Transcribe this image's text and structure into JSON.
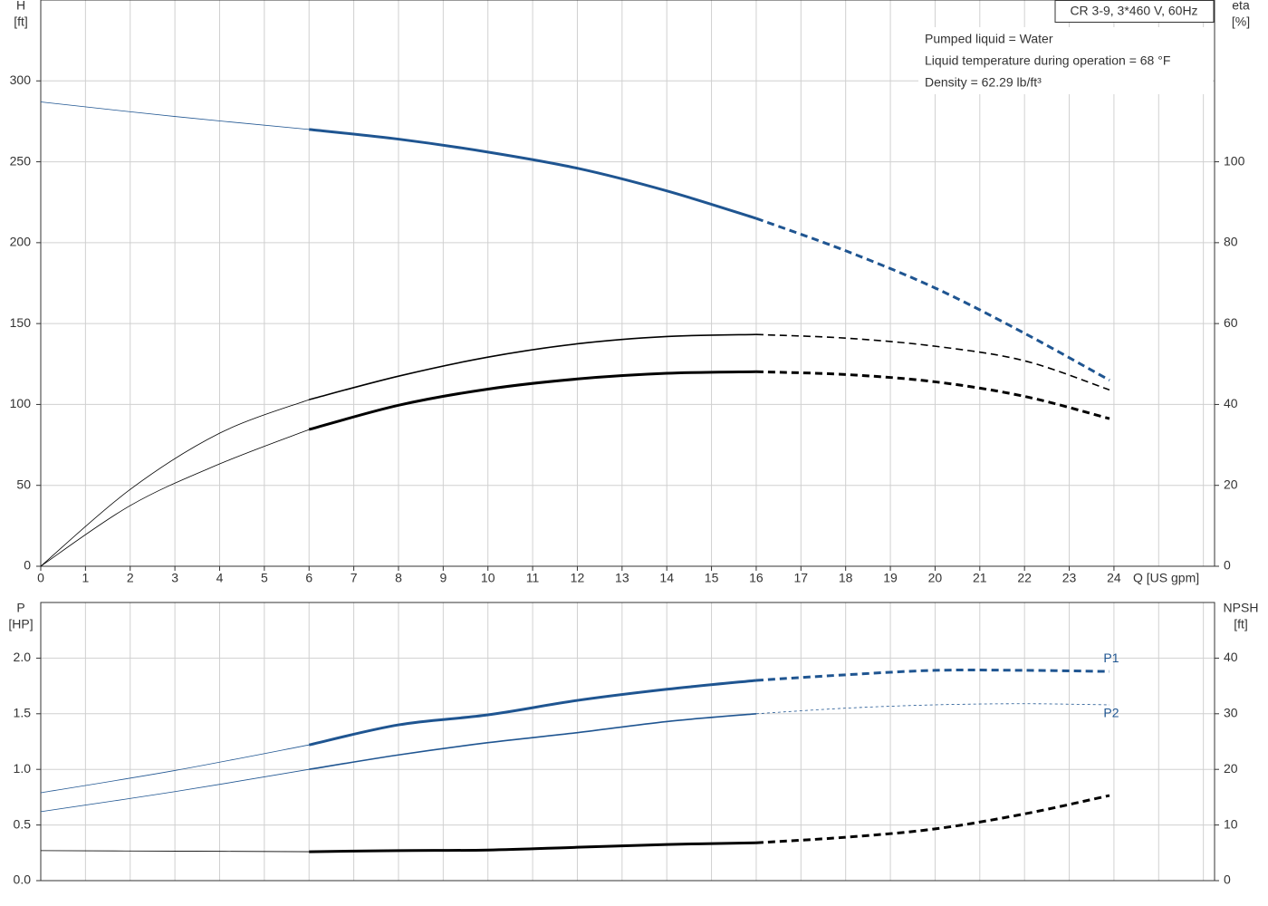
{
  "chart_data": [
    {
      "type": "line",
      "y_label": "H",
      "y_unit": "[ft]",
      "y2_label": "eta",
      "y2_unit": "[%]",
      "x_label": "Q [US gpm]",
      "title": "CR 3-9, 3*460 V, 60Hz",
      "notes": [
        "Pumped liquid = Water",
        "Liquid temperature during operation = 68 °F",
        "Density = 62.29 lb/ft³"
      ],
      "xlim": [
        0,
        26.25
      ],
      "xticks": [
        0,
        1,
        2,
        3,
        4,
        5,
        6,
        7,
        8,
        9,
        10,
        11,
        12,
        13,
        14,
        15,
        16,
        17,
        18,
        19,
        20,
        21,
        22,
        23,
        24
      ],
      "ylim": [
        0,
        350
      ],
      "yticks": [
        0,
        50,
        100,
        150,
        200,
        250,
        300
      ],
      "y2lim": [
        0,
        140
      ],
      "y2ticks": [
        0,
        20,
        40,
        60,
        80,
        100
      ],
      "grid": true,
      "curves": [
        {
          "color": "#1f5591",
          "axis": "y",
          "pieces": [
            {
              "style": "thin",
              "dashed": false,
              "x": [
                0,
                3,
                6
              ],
              "values": [
                287,
                278,
                270
              ]
            },
            {
              "style": "thick",
              "dashed": false,
              "x": [
                6,
                8,
                10,
                12,
                14,
                16
              ],
              "values": [
                270,
                264,
                256,
                246,
                232,
                215
              ]
            },
            {
              "style": "thick",
              "dashed": true,
              "x": [
                16,
                18,
                20,
                22,
                23.9
              ],
              "values": [
                215,
                195,
                172,
                144,
                115
              ]
            }
          ]
        },
        {
          "color": "#000000",
          "axis": "y2",
          "pieces": [
            {
              "style": "thin",
              "dashed": false,
              "x": [
                0,
                2,
                4,
                6
              ],
              "values": [
                0,
                19,
                32.9,
                41.2
              ]
            },
            {
              "style": "medium",
              "dashed": false,
              "x": [
                6,
                8,
                10,
                12,
                14,
                16
              ],
              "values": [
                41.2,
                47,
                51.7,
                55,
                56.8,
                57.3
              ]
            },
            {
              "style": "medium",
              "dashed": true,
              "x": [
                16,
                18,
                20,
                22,
                23.9
              ],
              "values": [
                57.3,
                56.4,
                54.4,
                50.8,
                43.6
              ]
            }
          ]
        },
        {
          "color": "#000000",
          "axis": "y2",
          "pieces": [
            {
              "style": "thin",
              "dashed": false,
              "x": [
                0,
                2,
                4,
                6
              ],
              "values": [
                0,
                15,
                25.3,
                33.8
              ]
            },
            {
              "style": "thick",
              "dashed": false,
              "x": [
                6,
                8,
                10,
                12,
                14,
                16
              ],
              "values": [
                33.8,
                39.8,
                43.8,
                46.3,
                47.7,
                48.1
              ]
            },
            {
              "style": "thick",
              "dashed": true,
              "x": [
                16,
                18,
                20,
                22,
                23.9
              ],
              "values": [
                48.1,
                47.4,
                45.6,
                42,
                36.5
              ]
            }
          ]
        }
      ]
    },
    {
      "type": "line",
      "y_label": "P",
      "y_unit": "[HP]",
      "y2_label": "NPSH",
      "y2_unit": "[ft]",
      "xlim": [
        0,
        26.25
      ],
      "ylim": [
        0,
        2.5
      ],
      "yticks": [
        {
          "value": 0,
          "label": "0.0"
        },
        0.5,
        {
          "value": 1,
          "label": "1.0"
        },
        1.5,
        {
          "value": 2,
          "label": "2.0"
        }
      ],
      "y2lim": [
        0,
        50
      ],
      "y2ticks": [
        0,
        10,
        20,
        30,
        40
      ],
      "grid": true,
      "curves": [
        {
          "label": "P1",
          "label_side": "above",
          "color": "#1f5591",
          "axis": "y",
          "pieces": [
            {
              "style": "thin",
              "dashed": false,
              "x": [
                0,
                3,
                6
              ],
              "values": [
                0.79,
                0.99,
                1.22
              ]
            },
            {
              "style": "thick",
              "dashed": false,
              "x": [
                6,
                8,
                10,
                12,
                14,
                16
              ],
              "values": [
                1.22,
                1.4,
                1.49,
                1.62,
                1.72,
                1.8
              ]
            },
            {
              "style": "thick",
              "dashed": true,
              "x": [
                16,
                18,
                20,
                22,
                23.9
              ],
              "values": [
                1.8,
                1.85,
                1.89,
                1.89,
                1.88
              ]
            }
          ]
        },
        {
          "label": "P2",
          "label_side": "below",
          "color": "#1f5591",
          "axis": "y",
          "pieces": [
            {
              "style": "thin",
              "dashed": false,
              "x": [
                0,
                3,
                6
              ],
              "values": [
                0.62,
                0.8,
                1
              ]
            },
            {
              "style": "medium",
              "dashed": false,
              "x": [
                6,
                8,
                10,
                12,
                14,
                16
              ],
              "values": [
                1,
                1.13,
                1.24,
                1.33,
                1.43,
                1.5
              ]
            },
            {
              "style": "thin",
              "dashed": true,
              "x": [
                16,
                18,
                20,
                22,
                23.9
              ],
              "values": [
                1.5,
                1.55,
                1.58,
                1.59,
                1.58
              ]
            }
          ]
        },
        {
          "color": "#000000",
          "axis": "y2",
          "pieces": [
            {
              "style": "thin",
              "dashed": false,
              "x": [
                0,
                3,
                6
              ],
              "values": [
                5.4,
                5.3,
                5.2
              ]
            },
            {
              "style": "thick",
              "dashed": false,
              "x": [
                6,
                8,
                10,
                12,
                14,
                16
              ],
              "values": [
                5.2,
                5.4,
                5.5,
                6,
                6.5,
                6.8
              ]
            },
            {
              "style": "thick",
              "dashed": true,
              "x": [
                16,
                18,
                20,
                22,
                23.9
              ],
              "values": [
                6.8,
                7.8,
                9.3,
                12,
                15.3
              ]
            }
          ]
        }
      ]
    }
  ]
}
